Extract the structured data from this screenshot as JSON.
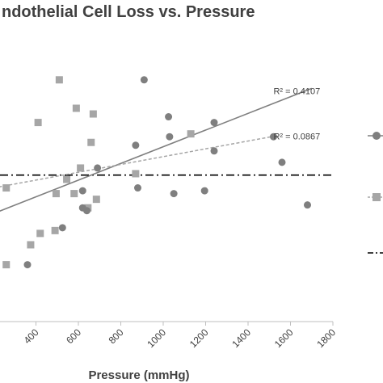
{
  "chart_data": {
    "type": "scatter",
    "title": "ndothelial Cell Loss vs. Pressure",
    "xlabel": "Pressure (mmHg)",
    "ylabel": "",
    "xlim": [
      200,
      1800
    ],
    "ylim": [
      0,
      100
    ],
    "x_ticks": [
      "400",
      "600",
      "800",
      "1000",
      "1200",
      "1400",
      "1600",
      "1800"
    ],
    "grid": false,
    "legend": "right (labels cut off)",
    "colors": {
      "circle_series": "#7f7f7f",
      "square_series": "#a6a6a6",
      "dashdot_line": "#000000",
      "text": "#404040"
    },
    "series": [
      {
        "marker": "circle",
        "color": "#7f7f7f",
        "x": [
          910,
          1025,
          1030,
          870,
          1240,
          1240,
          1520,
          690,
          1560,
          1680,
          620,
          1050,
          1195,
          880,
          525,
          640,
          620,
          360
        ],
        "y": [
          85,
          72,
          65,
          62,
          70,
          60,
          65,
          54,
          56,
          41,
          46,
          45,
          46,
          47,
          33,
          39,
          40,
          20
        ]
      },
      {
        "marker": "square",
        "color": "#a6a6a6",
        "x": [
          510,
          590,
          670,
          410,
          660,
          1130,
          610,
          545,
          870,
          580,
          495,
          685,
          645,
          260,
          490,
          420,
          375,
          260
        ],
        "y": [
          85,
          75,
          73,
          70,
          63,
          66,
          54,
          50,
          52,
          45,
          45,
          43,
          40,
          47,
          32,
          31,
          27,
          20
        ]
      }
    ],
    "trendlines": [
      {
        "series": "circle",
        "style": "solid",
        "color": "#7f7f7f",
        "x": [
          200,
          1700
        ],
        "y": [
          38,
          82
        ]
      },
      {
        "series": "square",
        "style": "dashed",
        "color": "#a6a6a6",
        "x": [
          200,
          1510
        ],
        "y": [
          47,
          65
        ]
      }
    ],
    "reference_line": {
      "style": "dash-dot",
      "color": "#000000",
      "y": 51.5
    },
    "annotations": [
      {
        "text": "R² = 0.4107",
        "x": 1630,
        "y": 80
      },
      {
        "text": "R² = 0.0867",
        "x": 1630,
        "y": 64
      }
    ],
    "legend_markers": [
      "circle",
      "square",
      "dash-dot"
    ]
  }
}
